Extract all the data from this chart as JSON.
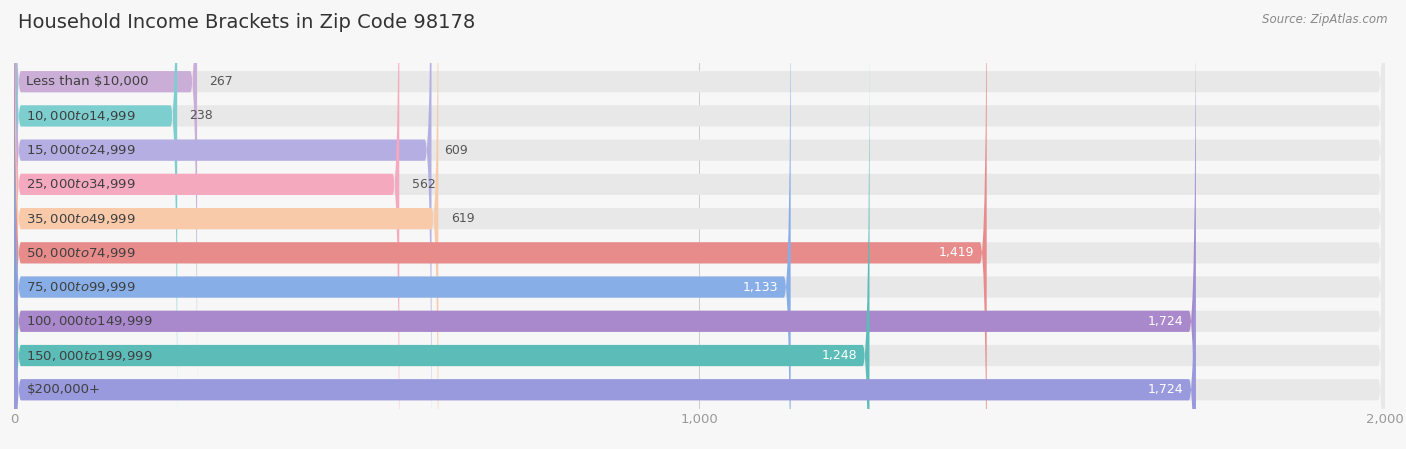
{
  "title": "Household Income Brackets in Zip Code 98178",
  "source": "Source: ZipAtlas.com",
  "categories": [
    "Less than $10,000",
    "$10,000 to $14,999",
    "$15,000 to $24,999",
    "$25,000 to $34,999",
    "$35,000 to $49,999",
    "$50,000 to $74,999",
    "$75,000 to $99,999",
    "$100,000 to $149,999",
    "$150,000 to $199,999",
    "$200,000+"
  ],
  "values": [
    267,
    238,
    609,
    562,
    619,
    1419,
    1133,
    1724,
    1248,
    1724
  ],
  "bar_colors": [
    "#caaed8",
    "#7dcecf",
    "#b4aee2",
    "#f5a9bf",
    "#f8caaa",
    "#e88b8b",
    "#88aee8",
    "#aa88cc",
    "#5bbcb8",
    "#9999dd"
  ],
  "xlim": [
    0,
    2000
  ],
  "xticks": [
    0,
    1000,
    2000
  ],
  "xtick_labels": [
    "0",
    "1,000",
    "2,000"
  ],
  "background_color": "#f7f7f7",
  "bar_background_color": "#e8e8e8",
  "title_fontsize": 14,
  "label_fontsize": 9.5,
  "value_fontsize": 9,
  "bar_height": 0.62,
  "value_inside_color": "#ffffff",
  "value_outside_color": "#555555",
  "inside_threshold": 800
}
